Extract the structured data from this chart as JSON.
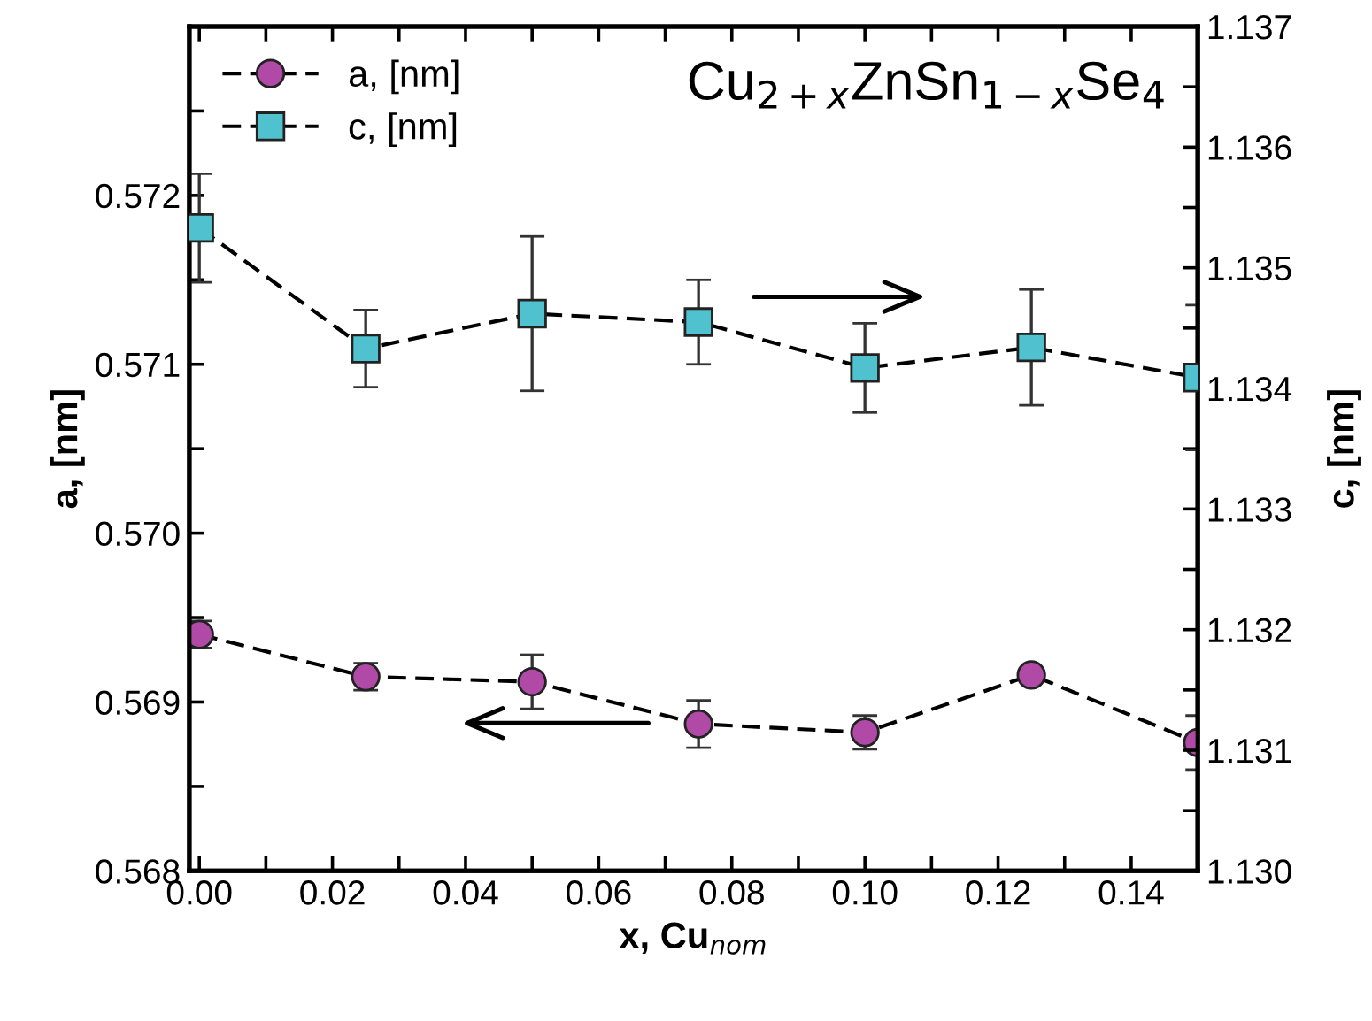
{
  "chart_data": {
    "type": "line",
    "x": [
      0.0,
      0.025,
      0.05,
      0.075,
      0.1,
      0.125,
      0.15
    ],
    "series": [
      {
        "name": "a, [nm]",
        "color": "#b04aa6",
        "marker": "circle",
        "line_style": "dashed",
        "values": [
          0.5694,
          0.56915,
          0.56912,
          0.56887,
          0.56882,
          0.56916,
          0.56876
        ],
        "errors": [
          8e-05,
          8e-05,
          0.00016,
          0.00014,
          0.0001,
          null,
          0.00016
        ]
      },
      {
        "name": "c, [nm]",
        "color": "#4fc1cf",
        "marker": "square",
        "line_style": "dashed",
        "axis": "y2",
        "values": [
          1.13533,
          1.13433,
          1.13462,
          1.13455,
          1.13417,
          1.13434,
          1.13409
        ],
        "errors": [
          0.00045,
          0.00032,
          0.00064,
          0.00035,
          0.00037,
          0.00048,
          0.0006
        ]
      }
    ],
    "xlabel": "x, Cu$_{nom}$",
    "ylabel": "a, [nm]",
    "y2label": "c, [nm]",
    "annotations": [
      "Cu$_{2+x}$ZnSn$_{1−x}$Se$_{4}$"
    ],
    "xlim": [
      -0.0015,
      0.15
    ],
    "xticks": [
      {
        "value": 0.0,
        "label": "0.00"
      },
      {
        "value": 0.01,
        "label": null
      },
      {
        "value": 0.02,
        "label": "0.02"
      },
      {
        "value": 0.03,
        "label": null
      },
      {
        "value": 0.04,
        "label": "0.04"
      },
      {
        "value": 0.05,
        "label": null
      },
      {
        "value": 0.06,
        "label": "0.06"
      },
      {
        "value": 0.07,
        "label": null
      },
      {
        "value": 0.08,
        "label": "0.08"
      },
      {
        "value": 0.09,
        "label": null
      },
      {
        "value": 0.1,
        "label": "0.10"
      },
      {
        "value": 0.11,
        "label": null
      },
      {
        "value": 0.12,
        "label": "0.12"
      },
      {
        "value": 0.13,
        "label": null
      },
      {
        "value": 0.14,
        "label": "0.14"
      }
    ],
    "ylim": [
      0.568,
      0.573
    ],
    "yticks": [
      0.568,
      {
        "value": 0.5685,
        "label": null
      },
      0.569,
      {
        "value": 0.5695,
        "label": null
      },
      {
        "value": 0.57,
        "label": "0.570"
      },
      {
        "value": 0.5705,
        "label": null
      },
      0.571,
      {
        "value": 0.5715,
        "label": null
      },
      0.572,
      {
        "value": 0.5725,
        "label": null
      }
    ],
    "y2lim": [
      1.13,
      1.137
    ],
    "y2ticks": [
      {
        "value": 1.13,
        "label": "1.130"
      },
      {
        "value": 1.1305,
        "label": null
      },
      1.131,
      {
        "value": 1.1315,
        "label": null
      },
      1.132,
      {
        "value": 1.1325,
        "label": null
      },
      1.133,
      {
        "value": 1.1335,
        "label": null
      },
      1.134,
      {
        "value": 1.1345,
        "label": null
      },
      1.135,
      {
        "value": 1.1355,
        "label": null
      },
      1.136,
      {
        "value": 1.1365,
        "label": null
      },
      1.137
    ],
    "legend": "top left",
    "grid": false
  }
}
